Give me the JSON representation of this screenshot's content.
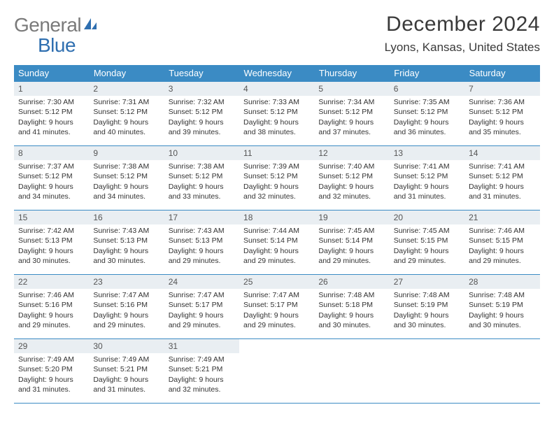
{
  "brand": {
    "word1": "General",
    "word2": "Blue"
  },
  "title": "December 2024",
  "location": "Lyons, Kansas, United States",
  "colors": {
    "header_bg": "#3b8bc4",
    "header_text": "#ffffff",
    "daynum_bg": "#e9eef2",
    "rule": "#3b8bc4",
    "body_text": "#333333",
    "logo_gray": "#7a7a7a",
    "logo_blue": "#2f6fb0"
  },
  "weekdays": [
    "Sunday",
    "Monday",
    "Tuesday",
    "Wednesday",
    "Thursday",
    "Friday",
    "Saturday"
  ],
  "weeks": [
    [
      {
        "n": "1",
        "sr": "7:30 AM",
        "ss": "5:12 PM",
        "dl": "9 hours and 41 minutes."
      },
      {
        "n": "2",
        "sr": "7:31 AM",
        "ss": "5:12 PM",
        "dl": "9 hours and 40 minutes."
      },
      {
        "n": "3",
        "sr": "7:32 AM",
        "ss": "5:12 PM",
        "dl": "9 hours and 39 minutes."
      },
      {
        "n": "4",
        "sr": "7:33 AM",
        "ss": "5:12 PM",
        "dl": "9 hours and 38 minutes."
      },
      {
        "n": "5",
        "sr": "7:34 AM",
        "ss": "5:12 PM",
        "dl": "9 hours and 37 minutes."
      },
      {
        "n": "6",
        "sr": "7:35 AM",
        "ss": "5:12 PM",
        "dl": "9 hours and 36 minutes."
      },
      {
        "n": "7",
        "sr": "7:36 AM",
        "ss": "5:12 PM",
        "dl": "9 hours and 35 minutes."
      }
    ],
    [
      {
        "n": "8",
        "sr": "7:37 AM",
        "ss": "5:12 PM",
        "dl": "9 hours and 34 minutes."
      },
      {
        "n": "9",
        "sr": "7:38 AM",
        "ss": "5:12 PM",
        "dl": "9 hours and 34 minutes."
      },
      {
        "n": "10",
        "sr": "7:38 AM",
        "ss": "5:12 PM",
        "dl": "9 hours and 33 minutes."
      },
      {
        "n": "11",
        "sr": "7:39 AM",
        "ss": "5:12 PM",
        "dl": "9 hours and 32 minutes."
      },
      {
        "n": "12",
        "sr": "7:40 AM",
        "ss": "5:12 PM",
        "dl": "9 hours and 32 minutes."
      },
      {
        "n": "13",
        "sr": "7:41 AM",
        "ss": "5:12 PM",
        "dl": "9 hours and 31 minutes."
      },
      {
        "n": "14",
        "sr": "7:41 AM",
        "ss": "5:12 PM",
        "dl": "9 hours and 31 minutes."
      }
    ],
    [
      {
        "n": "15",
        "sr": "7:42 AM",
        "ss": "5:13 PM",
        "dl": "9 hours and 30 minutes."
      },
      {
        "n": "16",
        "sr": "7:43 AM",
        "ss": "5:13 PM",
        "dl": "9 hours and 30 minutes."
      },
      {
        "n": "17",
        "sr": "7:43 AM",
        "ss": "5:13 PM",
        "dl": "9 hours and 29 minutes."
      },
      {
        "n": "18",
        "sr": "7:44 AM",
        "ss": "5:14 PM",
        "dl": "9 hours and 29 minutes."
      },
      {
        "n": "19",
        "sr": "7:45 AM",
        "ss": "5:14 PM",
        "dl": "9 hours and 29 minutes."
      },
      {
        "n": "20",
        "sr": "7:45 AM",
        "ss": "5:15 PM",
        "dl": "9 hours and 29 minutes."
      },
      {
        "n": "21",
        "sr": "7:46 AM",
        "ss": "5:15 PM",
        "dl": "9 hours and 29 minutes."
      }
    ],
    [
      {
        "n": "22",
        "sr": "7:46 AM",
        "ss": "5:16 PM",
        "dl": "9 hours and 29 minutes."
      },
      {
        "n": "23",
        "sr": "7:47 AM",
        "ss": "5:16 PM",
        "dl": "9 hours and 29 minutes."
      },
      {
        "n": "24",
        "sr": "7:47 AM",
        "ss": "5:17 PM",
        "dl": "9 hours and 29 minutes."
      },
      {
        "n": "25",
        "sr": "7:47 AM",
        "ss": "5:17 PM",
        "dl": "9 hours and 29 minutes."
      },
      {
        "n": "26",
        "sr": "7:48 AM",
        "ss": "5:18 PM",
        "dl": "9 hours and 30 minutes."
      },
      {
        "n": "27",
        "sr": "7:48 AM",
        "ss": "5:19 PM",
        "dl": "9 hours and 30 minutes."
      },
      {
        "n": "28",
        "sr": "7:48 AM",
        "ss": "5:19 PM",
        "dl": "9 hours and 30 minutes."
      }
    ],
    [
      {
        "n": "29",
        "sr": "7:49 AM",
        "ss": "5:20 PM",
        "dl": "9 hours and 31 minutes."
      },
      {
        "n": "30",
        "sr": "7:49 AM",
        "ss": "5:21 PM",
        "dl": "9 hours and 31 minutes."
      },
      {
        "n": "31",
        "sr": "7:49 AM",
        "ss": "5:21 PM",
        "dl": "9 hours and 32 minutes."
      },
      null,
      null,
      null,
      null
    ]
  ],
  "labels": {
    "sunrise": "Sunrise:",
    "sunset": "Sunset:",
    "daylight": "Daylight:"
  }
}
